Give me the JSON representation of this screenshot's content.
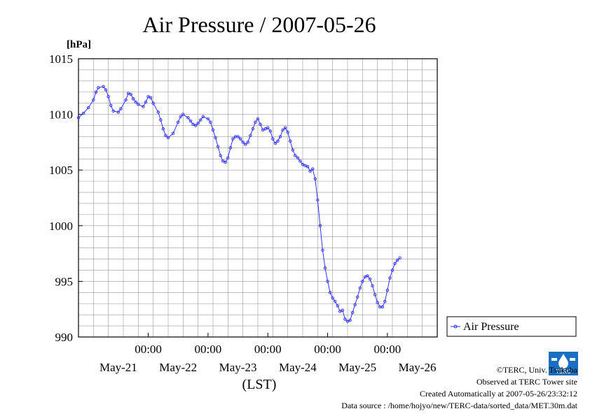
{
  "chart_data": {
    "type": "line",
    "title": "Air Pressure / 2007-05-26",
    "unit_label": "[hPa]",
    "xlabel": "(LST)",
    "ylim": [
      990,
      1015
    ],
    "y_ticks": [
      990,
      995,
      1000,
      1005,
      1010,
      1015
    ],
    "x_tick_labels": [
      "00:00",
      "00:00",
      "00:00",
      "00:00",
      "00:00"
    ],
    "x_date_labels": [
      "May-21",
      "May-22",
      "May-23",
      "May-24",
      "May-25",
      "May-26"
    ],
    "x_range_hours": [
      0,
      144
    ],
    "x_unit": "hours (LST) from 2007-05-20 20:00",
    "grid": true,
    "legend_position": "right",
    "series": [
      {
        "name": "Air Pressure",
        "color": "#3333ff",
        "marker": "open-circle",
        "points": [
          [
            0,
            1009.7
          ],
          [
            2,
            1010.1
          ],
          [
            4,
            1010.6
          ],
          [
            6,
            1011.3
          ],
          [
            7,
            1012.0
          ],
          [
            8,
            1012.4
          ],
          [
            10,
            1012.5
          ],
          [
            11,
            1012.2
          ],
          [
            12,
            1011.6
          ],
          [
            13,
            1010.8
          ],
          [
            14,
            1010.3
          ],
          [
            16,
            1010.2
          ],
          [
            17,
            1010.5
          ],
          [
            19,
            1011.3
          ],
          [
            20,
            1011.9
          ],
          [
            21,
            1011.8
          ],
          [
            22,
            1011.4
          ],
          [
            23,
            1011.1
          ],
          [
            24,
            1010.9
          ],
          [
            26,
            1010.7
          ],
          [
            27,
            1011.1
          ],
          [
            28,
            1011.6
          ],
          [
            29,
            1011.5
          ],
          [
            30,
            1011.0
          ],
          [
            32,
            1010.2
          ],
          [
            33,
            1009.5
          ],
          [
            34,
            1008.7
          ],
          [
            35,
            1008.1
          ],
          [
            36,
            1007.9
          ],
          [
            38,
            1008.3
          ],
          [
            40,
            1009.3
          ],
          [
            41,
            1009.8
          ],
          [
            42,
            1010.0
          ],
          [
            44,
            1009.7
          ],
          [
            45,
            1009.4
          ],
          [
            46,
            1009.1
          ],
          [
            47,
            1009.0
          ],
          [
            48,
            1009.2
          ],
          [
            49,
            1009.5
          ],
          [
            50,
            1009.8
          ],
          [
            52,
            1009.6
          ],
          [
            53,
            1009.3
          ],
          [
            54,
            1008.6
          ],
          [
            55,
            1007.9
          ],
          [
            56,
            1007.1
          ],
          [
            57,
            1006.3
          ],
          [
            58,
            1005.8
          ],
          [
            59,
            1005.7
          ],
          [
            60,
            1006.1
          ],
          [
            61,
            1007.0
          ],
          [
            62,
            1007.8
          ],
          [
            63,
            1008.0
          ],
          [
            64,
            1008.0
          ],
          [
            65,
            1007.8
          ],
          [
            66,
            1007.5
          ],
          [
            67,
            1007.3
          ],
          [
            68,
            1007.5
          ],
          [
            69,
            1008.1
          ],
          [
            70,
            1008.7
          ],
          [
            71,
            1009.3
          ],
          [
            72,
            1009.6
          ],
          [
            73,
            1009.1
          ],
          [
            74,
            1008.6
          ],
          [
            75,
            1008.7
          ],
          [
            76,
            1008.8
          ],
          [
            77,
            1008.5
          ],
          [
            78,
            1007.8
          ],
          [
            79,
            1007.4
          ],
          [
            80,
            1007.6
          ],
          [
            81,
            1008.0
          ],
          [
            82,
            1008.6
          ],
          [
            83,
            1008.8
          ],
          [
            84,
            1008.4
          ],
          [
            85,
            1007.6
          ],
          [
            86,
            1006.8
          ],
          [
            87,
            1006.3
          ],
          [
            88,
            1006.1
          ],
          [
            89,
            1005.8
          ],
          [
            90,
            1005.5
          ],
          [
            91,
            1005.4
          ],
          [
            92,
            1005.3
          ],
          [
            93,
            1004.9
          ],
          [
            94,
            1005.1
          ],
          [
            95,
            1004.2
          ],
          [
            96,
            1002.3
          ],
          [
            97,
            1000.0
          ],
          [
            98,
            997.8
          ],
          [
            99,
            996.2
          ],
          [
            100,
            995.0
          ],
          [
            101,
            994.0
          ],
          [
            102,
            993.5
          ],
          [
            103,
            993.2
          ],
          [
            104,
            992.8
          ],
          [
            105,
            992.3
          ],
          [
            106,
            992.4
          ],
          [
            107,
            991.6
          ],
          [
            108,
            991.4
          ],
          [
            109,
            991.5
          ],
          [
            110,
            992.2
          ],
          [
            111,
            992.9
          ],
          [
            112,
            993.6
          ],
          [
            113,
            994.4
          ],
          [
            114,
            995.0
          ],
          [
            115,
            995.4
          ],
          [
            116,
            995.5
          ],
          [
            117,
            995.2
          ],
          [
            118,
            994.6
          ],
          [
            119,
            993.8
          ],
          [
            120,
            993.1
          ],
          [
            121,
            992.7
          ],
          [
            122,
            992.7
          ],
          [
            123,
            993.2
          ],
          [
            124,
            994.2
          ],
          [
            125,
            995.3
          ],
          [
            126,
            996.0
          ],
          [
            127,
            996.6
          ],
          [
            128,
            996.9
          ],
          [
            129,
            997.1
          ]
        ]
      }
    ]
  },
  "credits": {
    "copyright": "©TERC, Univ. Tsukuba",
    "observed": "Observed at TERC Tower site",
    "created": "Created Automatically at 2007-05-26/23:32:12",
    "source": "Data source : /home/hojyo/new/TERC-data/sorted_data/MET.30m.dat",
    "logo_text": "TERC"
  }
}
